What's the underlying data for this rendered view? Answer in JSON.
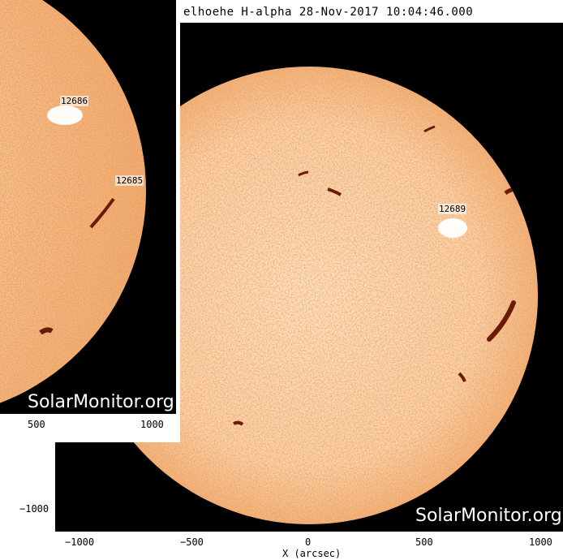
{
  "main_image": {
    "title": "elhoehe H-alpha 28-Nov-2017 10:04:46.000",
    "watermark": "SolarMonitor.org",
    "x_ticks": [
      "−1000",
      "−500",
      "0",
      "500",
      "1000"
    ],
    "y_ticks": [
      "−1000"
    ],
    "x_axis_label": "X (arcsec)",
    "regions": [
      "12689"
    ]
  },
  "inset_image": {
    "watermark": "SolarMonitor.org",
    "x_ticks": [
      "500",
      "1000"
    ],
    "regions": [
      "12686",
      "12685"
    ]
  },
  "colors": {
    "background": "#000000",
    "sun_light": "#ffe9d2",
    "sun_dark": "#c8561c",
    "filament": "#6a1a05"
  }
}
